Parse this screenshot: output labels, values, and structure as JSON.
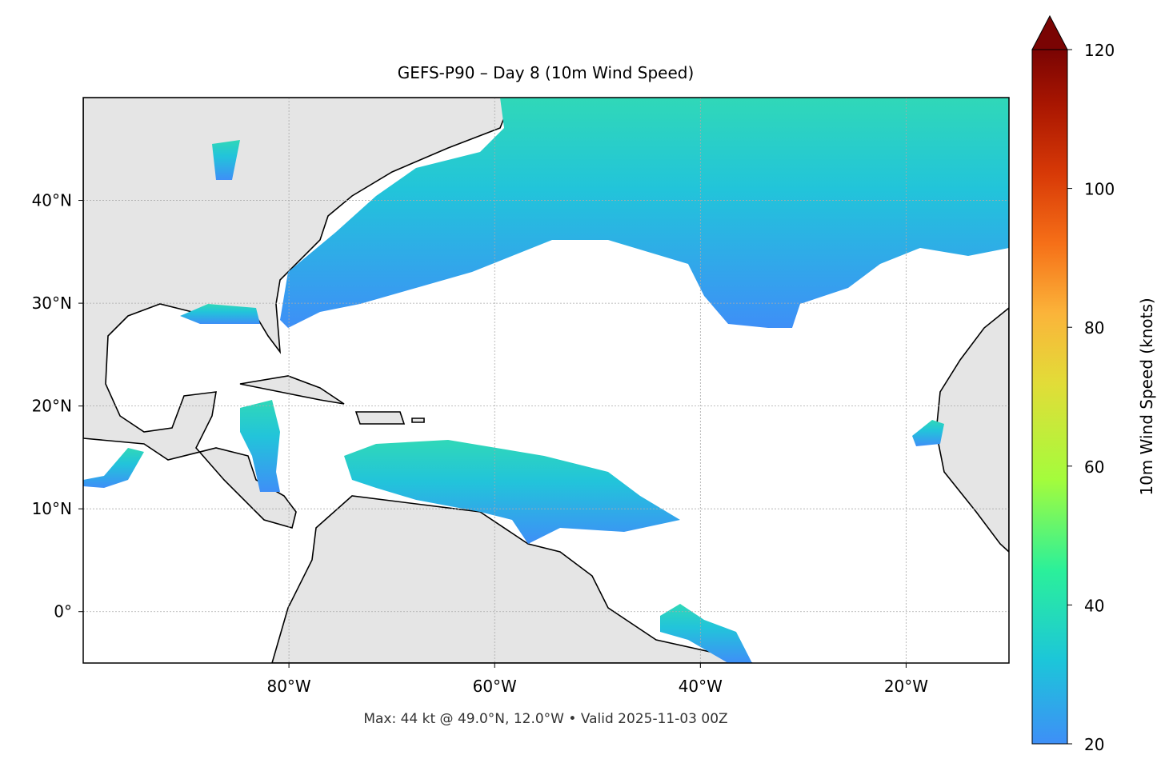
{
  "map": {
    "title": "GEFS-P90 – Day 8 (10m Wind Speed)",
    "footer": "Max: 44 kt @ 49.0°N, 12.0°W • Valid 2025-11-03 00Z",
    "lonlim": [
      -100,
      -10
    ],
    "latlim": [
      -5,
      50
    ],
    "xticks": [
      {
        "value": -80,
        "label": "80°W"
      },
      {
        "value": -60,
        "label": "60°W"
      },
      {
        "value": -40,
        "label": "40°W"
      },
      {
        "value": -20,
        "label": "20°W"
      }
    ],
    "yticks": [
      {
        "value": 0,
        "label": "0°"
      },
      {
        "value": 10,
        "label": "10°N"
      },
      {
        "value": 20,
        "label": "20°N"
      },
      {
        "value": 30,
        "label": "30°N"
      },
      {
        "value": 40,
        "label": "40°N"
      }
    ],
    "grid": true,
    "colorbar": {
      "label": "10m Wind Speed (knots)",
      "lim": [
        20,
        120
      ],
      "ticks": [
        20,
        40,
        60,
        80,
        100,
        120
      ]
    }
  }
}
